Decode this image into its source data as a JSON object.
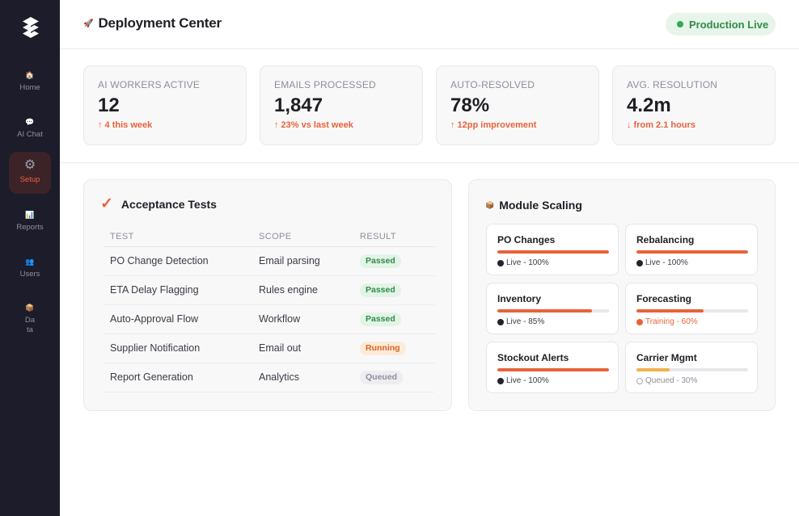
{
  "colors": {
    "accent": "#e8633a",
    "sidebar": "#1c1c2a",
    "live": "#33a852"
  },
  "sidebar": {
    "logo_icon": "stacked-layers-icon",
    "items": [
      {
        "label": "Home",
        "icon": "🏠",
        "icon_name": "home-icon"
      },
      {
        "label": "AI Chat",
        "icon": "💬",
        "icon_name": "chat-icon"
      },
      {
        "label": "Setup",
        "icon": "⚙",
        "icon_name": "gear-icon"
      },
      {
        "label": "Reports",
        "icon": "📊",
        "icon_name": "chart-icon"
      },
      {
        "label": "Users",
        "icon": "👥",
        "icon_name": "users-icon"
      },
      {
        "label": "Data",
        "icon": "📦",
        "icon_name": "box-icon"
      }
    ],
    "active": "Setup"
  },
  "header": {
    "icon": "🚀",
    "title": "Deployment Center",
    "status": "Production Live"
  },
  "stats": [
    {
      "label": "AI WORKERS ACTIVE",
      "value": "12",
      "delta": "↑ 4 this week"
    },
    {
      "label": "EMAILS PROCESSED",
      "value": "1,847",
      "delta": "↑ 23% vs last week"
    },
    {
      "label": "AUTO-RESOLVED",
      "value": "78%",
      "delta": "↑ 12pp improvement"
    },
    {
      "label": "AVG. RESOLUTION",
      "value": "4.2m",
      "delta": "↓ from 2.1 hours"
    }
  ],
  "tests": {
    "icon": "✓",
    "title": "Acceptance Tests",
    "columns": [
      "TEST",
      "SCOPE",
      "RESULT"
    ],
    "rows": [
      {
        "test": "PO Change Detection",
        "scope": "Email parsing",
        "result": "Passed"
      },
      {
        "test": "ETA Delay Flagging",
        "scope": "Rules engine",
        "result": "Passed"
      },
      {
        "test": "Auto-Approval Flow",
        "scope": "Workflow",
        "result": "Passed"
      },
      {
        "test": "Supplier Notification",
        "scope": "Email out",
        "result": "Running"
      },
      {
        "test": "Report Generation",
        "scope": "Analytics",
        "result": "Queued"
      }
    ]
  },
  "modules": {
    "icon": "📦",
    "title": "Module Scaling",
    "items": [
      {
        "name": "PO Changes",
        "status": "Live - 100%",
        "state": "live",
        "progress": 100
      },
      {
        "name": "Rebalancing",
        "status": "Live - 100%",
        "state": "live",
        "progress": 100
      },
      {
        "name": "Inventory",
        "status": "Live - 85%",
        "state": "live",
        "progress": 85
      },
      {
        "name": "Forecasting",
        "status": "Training - 60%",
        "state": "training",
        "progress": 60
      },
      {
        "name": "Stockout Alerts",
        "status": "Live - 100%",
        "state": "live",
        "progress": 100
      },
      {
        "name": "Carrier Mgmt",
        "status": "Queued - 30%",
        "state": "queued",
        "progress": 30
      }
    ]
  }
}
